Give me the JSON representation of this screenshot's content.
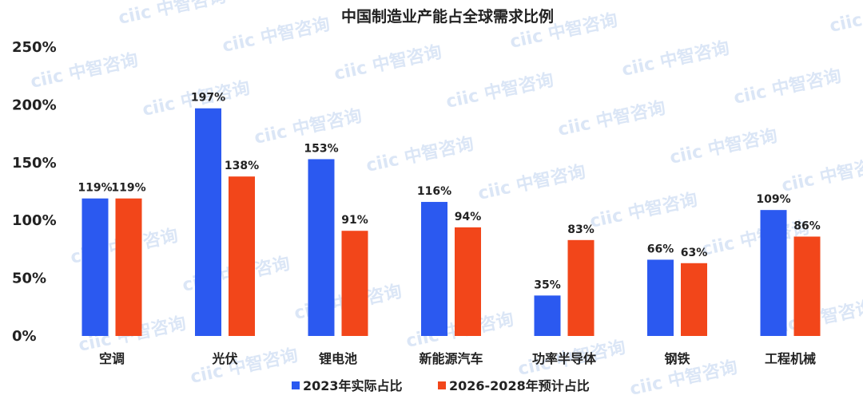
{
  "chart_data": {
    "type": "bar",
    "title": "中国制造业产能占全球需求比例",
    "categories": [
      "空调",
      "光伏",
      "锂电池",
      "新能源汽车",
      "功率半导体",
      "钢铁",
      "工程机械"
    ],
    "series": [
      {
        "name": "2023年实际占比",
        "color": "#2b59f0",
        "values": [
          119,
          197,
          153,
          116,
          35,
          66,
          109
        ]
      },
      {
        "name": "2026-2028年预计占比",
        "color": "#f2461a",
        "values": [
          119,
          138,
          91,
          94,
          83,
          63,
          86
        ]
      }
    ],
    "value_suffix": "%",
    "yticks": [
      "0%",
      "50%",
      "100%",
      "150%",
      "200%",
      "250%"
    ],
    "ylim": [
      0,
      250
    ],
    "grid": false,
    "legend_position": "bottom"
  },
  "watermark": "ciic 中智咨询"
}
